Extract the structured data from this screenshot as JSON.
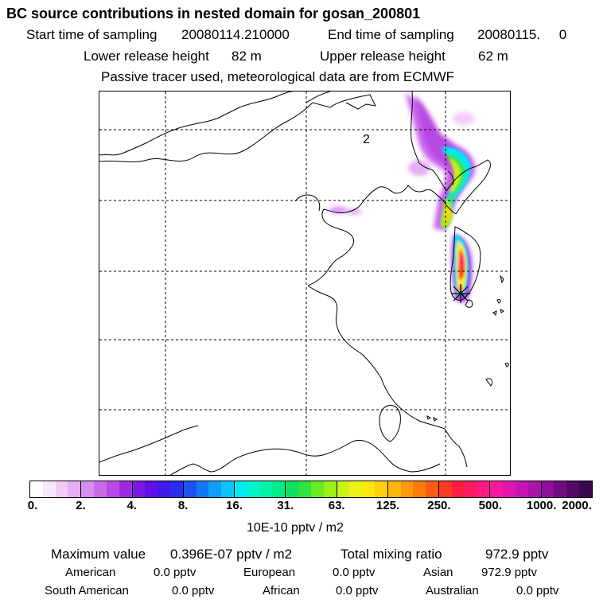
{
  "header": {
    "title": "BC  source contributions in nested domain for gosan_200801",
    "start_label": "Start time of sampling",
    "start_value": "20080114.210000",
    "end_label": "End time of sampling",
    "end_value": "20080115.     0",
    "lower_label": "Lower release height",
    "lower_value": "82 m",
    "upper_label": "Upper release height",
    "upper_value": "62 m",
    "note": "Passive tracer used, meteorological data are from ECMWF"
  },
  "map": {
    "marker_label": "2",
    "receptor_marker": "asterisk-receptor"
  },
  "colorbar": {
    "ticks": [
      "0.",
      "2.",
      "4.",
      "8.",
      "16.",
      "31.",
      "63.",
      "125.",
      "250.",
      "500.",
      "1000.",
      "2000."
    ],
    "colors": [
      "#ffffff",
      "#f8e8fb",
      "#f0ccf7",
      "#e6aef5",
      "#d98cf0",
      "#c96ae9",
      "#b84ae3",
      "#9a2ae0",
      "#7b17e2",
      "#5d10e6",
      "#4118ea",
      "#2a2cf0",
      "#1c52f4",
      "#1478f6",
      "#109ef8",
      "#0cc4f8",
      "#00e8f0",
      "#00f5cc",
      "#00f4a8",
      "#00ec84",
      "#10e060",
      "#30e440",
      "#66ea22",
      "#9cf014",
      "#c8f212",
      "#ecf218",
      "#ffe812",
      "#ffd00c",
      "#ffb60a",
      "#ff9a08",
      "#ff7c08",
      "#ff5a10",
      "#ff3a24",
      "#ff1e40",
      "#ff1a62",
      "#ff1a84",
      "#f618a0",
      "#e016ae",
      "#c614b0",
      "#aa12a8",
      "#8e1098",
      "#700e80",
      "#520a66",
      "#3a084c"
    ],
    "unit": "10E-10 pptv / m2"
  },
  "stats": {
    "max_label": "Maximum value",
    "max_value": "0.396E-07 pptv / m2",
    "total_label": "Total mixing ratio",
    "total_value": "972.9 pptv",
    "regions": [
      {
        "name": "American",
        "value": "0.0 pptv"
      },
      {
        "name": "European",
        "value": "0.0 pptv"
      },
      {
        "name": "Asian",
        "value": "972.9 pptv"
      },
      {
        "name": "South American",
        "value": "0.0 pptv"
      },
      {
        "name": "African",
        "value": "0.0 pptv"
      },
      {
        "name": "Australian",
        "value": "0.0 pptv"
      }
    ]
  }
}
